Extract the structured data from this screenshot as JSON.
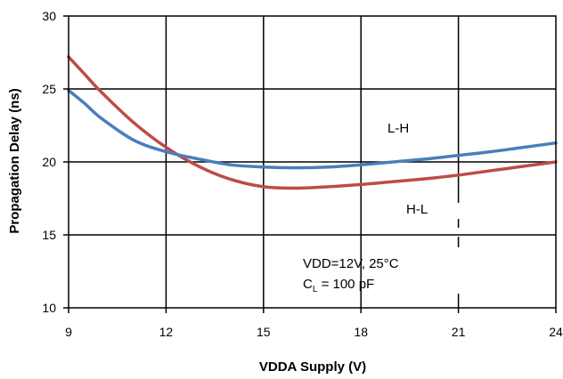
{
  "chart_data": {
    "type": "line",
    "title": "",
    "xlabel": "VDDA Supply (V)",
    "ylabel": "Propagation Delay (ns)",
    "xlim": [
      9,
      24
    ],
    "ylim": [
      10,
      30
    ],
    "xticks": [
      9,
      12,
      15,
      18,
      21,
      24
    ],
    "yticks": [
      10,
      15,
      20,
      25,
      30
    ],
    "grid": true,
    "series": [
      {
        "name": "L-H",
        "color": "#4a7ebb",
        "x": [
          9,
          9.5,
          10,
          11,
          12,
          13,
          14,
          15,
          16,
          17,
          18,
          19,
          20,
          21,
          22,
          23,
          24
        ],
        "y": [
          24.9,
          24.0,
          23.0,
          21.5,
          20.7,
          20.2,
          19.8,
          19.65,
          19.6,
          19.65,
          19.8,
          20.0,
          20.2,
          20.45,
          20.7,
          21.0,
          21.3
        ]
      },
      {
        "name": "H-L",
        "color": "#be4b48",
        "x": [
          9,
          9.5,
          10,
          11,
          12,
          13,
          14,
          15,
          16,
          17,
          18,
          19,
          20,
          21,
          22,
          23,
          24
        ],
        "y": [
          27.2,
          26.0,
          24.8,
          22.7,
          21.0,
          19.7,
          18.8,
          18.3,
          18.2,
          18.3,
          18.45,
          18.65,
          18.85,
          19.1,
          19.4,
          19.7,
          20.0
        ]
      }
    ],
    "annotations": {
      "lh": "L-H",
      "hl": "H-L",
      "cond1": "VDD=12V, 25°C",
      "cond2_pre": "C",
      "cond2_sub": "L",
      "cond2_post": " = 100 pF"
    }
  }
}
